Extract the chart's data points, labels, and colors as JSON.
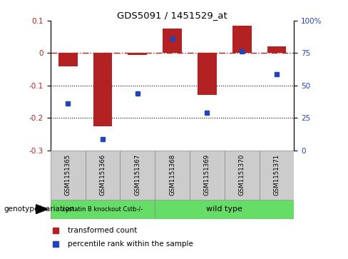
{
  "title": "GDS5091 / 1451529_at",
  "samples": [
    "GSM1151365",
    "GSM1151366",
    "GSM1151367",
    "GSM1151368",
    "GSM1151369",
    "GSM1151370",
    "GSM1151371"
  ],
  "red_bars": [
    -0.04,
    -0.225,
    -0.005,
    0.075,
    -0.13,
    0.085,
    0.02
  ],
  "blue_dots": [
    -0.155,
    -0.265,
    -0.125,
    0.045,
    -0.185,
    0.005,
    -0.065
  ],
  "ylim_left": [
    -0.3,
    0.1
  ],
  "ylim_right": [
    0,
    100
  ],
  "yticks_left": [
    -0.3,
    -0.2,
    -0.1,
    0.0,
    0.1
  ],
  "ytick_labels_left": [
    "-0.3",
    "-0.2",
    "-0.1",
    "0",
    "0.1"
  ],
  "yticks_right": [
    0,
    25,
    50,
    75,
    100
  ],
  "ytick_labels_right": [
    "0",
    "25",
    "50",
    "75",
    "100%"
  ],
  "dotted_lines": [
    -0.1,
    -0.2
  ],
  "group1_label": "cystatin B knockout Cstb-/-",
  "group2_label": "wild type",
  "group1_indices": [
    0,
    1,
    2
  ],
  "group2_indices": [
    3,
    4,
    5,
    6
  ],
  "bar_color": "#b22222",
  "dot_color": "#2244bb",
  "group_color": "#66dd66",
  "label_box_color": "#cccccc",
  "legend_label_red": "transformed count",
  "legend_label_blue": "percentile rank within the sample",
  "xlabel_label": "genotype/variation",
  "bar_width": 0.55
}
